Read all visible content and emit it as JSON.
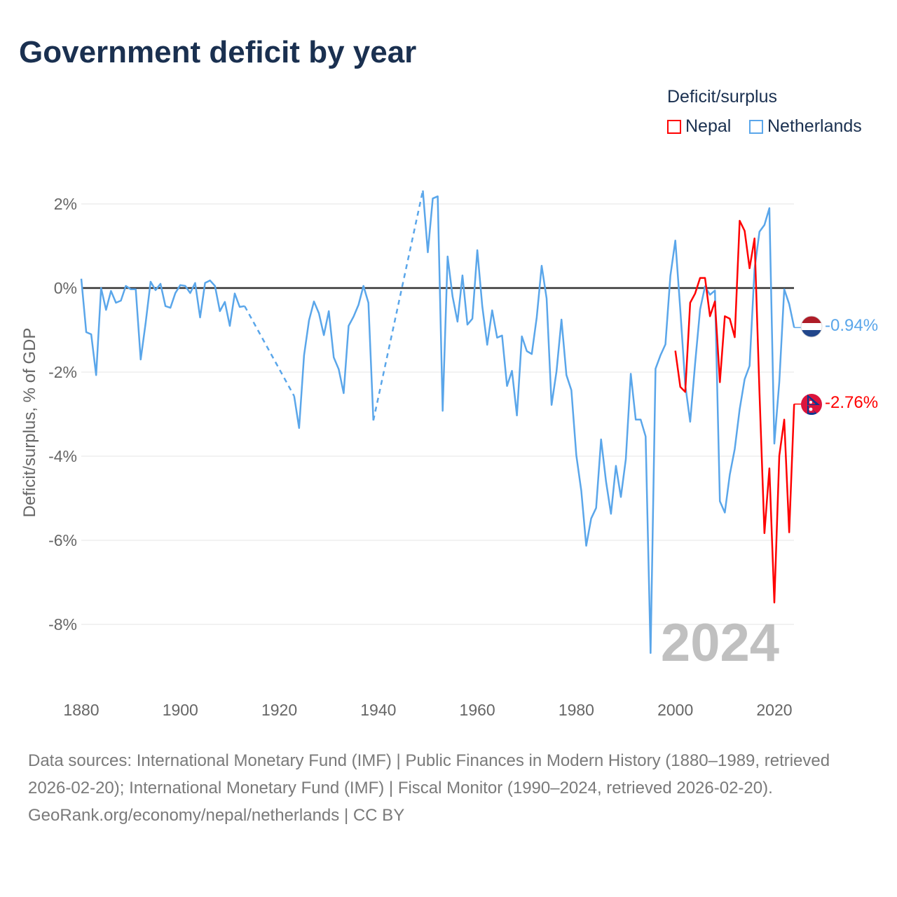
{
  "title": "Government deficit by year",
  "legend": {
    "title": "Deficit/surplus",
    "items": [
      {
        "name": "Nepal",
        "color": "#ff0000"
      },
      {
        "name": "Netherlands",
        "color": "#5aa6ea"
      }
    ]
  },
  "year_watermark": "2024",
  "end_labels": {
    "netherlands": "-0.94%",
    "nepal": "-2.76%"
  },
  "footer": {
    "sources": "Data sources: International Monetary Fund (IMF) | Public Finances in Modern History (1880–1989, retrieved 2026-02-20); International Monetary Fund (IMF) | Fiscal Monitor (1990–2024, retrieved 2026-02-20).",
    "credit": "GeoRank.org/economy/nepal/netherlands | CC BY"
  },
  "chart_data": {
    "type": "line",
    "title": "Government deficit by year",
    "ylabel": "Deficit/surplus, % of GDP",
    "xlabel": "",
    "xlim": [
      1880,
      2024
    ],
    "ylim": [
      -9,
      2.5
    ],
    "x_ticks": [
      1880,
      1900,
      1920,
      1940,
      1960,
      1980,
      2000,
      2020
    ],
    "x_tick_labels": [
      "1880",
      "1900",
      "1920",
      "1940",
      "1960",
      "1980",
      "2000",
      "2020"
    ],
    "y_ticks": [
      2,
      0,
      -2,
      -4,
      -6,
      -8
    ],
    "y_tick_labels": [
      "2%",
      "0%",
      "-2%",
      "-4%",
      "-6%",
      "-8%"
    ],
    "grid": true,
    "series": [
      {
        "name": "Netherlands",
        "color": "#5aa6ea",
        "start": 1880,
        "values": [
          0.22,
          -1.05,
          -1.1,
          -2.07,
          0,
          -0.52,
          -0.07,
          -0.35,
          -0.3,
          0.05,
          -0.03,
          -0.03,
          -1.7,
          -0.83,
          0.15,
          -0.05,
          0.1,
          -0.43,
          -0.47,
          -0.12,
          0.07,
          0.05,
          -0.12,
          0.12,
          -0.7,
          0.12,
          0.18,
          0.05,
          -0.55,
          -0.33,
          -0.9,
          -0.13,
          -0.45,
          -0.43,
          null,
          null,
          null,
          null,
          null,
          null,
          null,
          null,
          null,
          -2.57,
          -3.33,
          -1.6,
          -0.77,
          -0.32,
          -0.6,
          -1.12,
          -0.55,
          -1.65,
          -1.93,
          -2.5,
          -0.9,
          -0.68,
          -0.4,
          0.05,
          -0.35,
          -3.15,
          null,
          null,
          null,
          null,
          null,
          null,
          null,
          null,
          null,
          2.32,
          0.85,
          2.13,
          2.18,
          -2.92,
          0.75,
          -0.2,
          -0.8,
          0.3,
          -0.87,
          -0.73,
          0.9,
          -0.43,
          -1.35,
          -0.53,
          -1.18,
          -1.13,
          -2.33,
          -1.97,
          -3.03,
          -1.15,
          -1.5,
          -1.57,
          -0.7,
          0.53,
          -0.25,
          -2.78,
          -1.98,
          -0.75,
          -2.07,
          -2.43,
          -3.98,
          -4.82,
          -6.13,
          -5.48,
          -5.23,
          -3.6,
          -4.6,
          -5.37,
          -4.23,
          -4.97,
          -4.07,
          -2.04,
          -3.13,
          -3.13,
          -3.53,
          -8.68,
          -1.92,
          -1.6,
          -1.34,
          0.29,
          1.13,
          -0.51,
          -2.3,
          -3.18,
          -1.79,
          -0.51,
          0.04,
          -0.16,
          -0.06,
          -5.07,
          -5.34,
          -4.44,
          -3.83,
          -2.88,
          -2.17,
          -1.85,
          0.45,
          1.34,
          1.5,
          1.9,
          -3.7,
          -2.24,
          -0.03,
          -0.38,
          -0.94
        ]
      },
      {
        "name": "Nepal",
        "color": "#ff0000",
        "start": 2000,
        "values": [
          -1.49,
          -2.35,
          -2.47,
          -0.35,
          -0.13,
          0.24,
          0.24,
          -0.67,
          -0.32,
          -2.24,
          -0.67,
          -0.73,
          -1.17,
          1.6,
          1.36,
          0.47,
          1.18,
          -2.49,
          -5.83,
          -4.29,
          -7.48,
          -3.99,
          -3.13,
          -5.81,
          -2.76
        ]
      }
    ]
  }
}
